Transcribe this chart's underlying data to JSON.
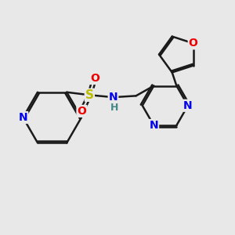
{
  "background_color": "#e8e8e8",
  "bond_color": "#1a1a1a",
  "bond_width": 1.8,
  "atom_colors": {
    "N": "#0000ee",
    "O": "#ee0000",
    "S": "#bbbb00",
    "H": "#448888",
    "C": "#1a1a1a"
  },
  "font_size": 10
}
